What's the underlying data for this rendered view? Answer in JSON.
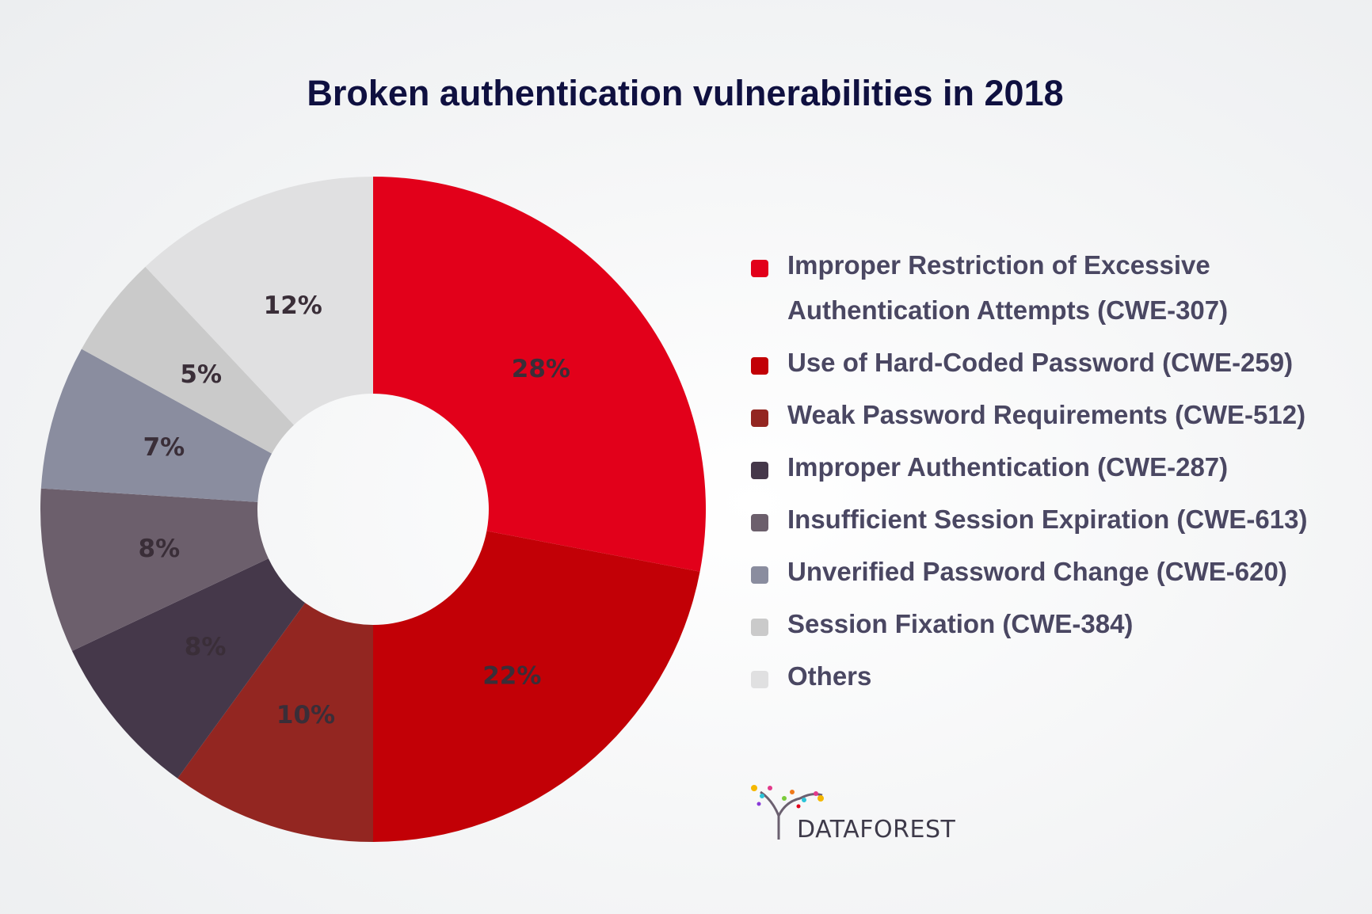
{
  "chart_data": {
    "type": "donut",
    "title": "Broken authentication vulnerabilities in 2018",
    "categories": [
      "Improper Restriction of Excessive Authentication Attempts (CWE-307)",
      "Use of Hard-Coded Password (CWE-259)",
      "Weak Password Requirements (CWE-512)",
      "Improper Authentication (CWE-287)",
      "Insufficient Session Expiration (CWE-613)",
      "Unverified Password Change (CWE-620)",
      "Session Fixation (CWE-384)",
      "Others"
    ],
    "values": [
      28,
      22,
      10,
      8,
      8,
      7,
      5,
      12
    ],
    "value_labels": [
      "28%",
      "22%",
      "10%",
      "8%",
      "8%",
      "7%",
      "5%",
      "12%"
    ],
    "colors": [
      "#e2001a",
      "#c20006",
      "#932621",
      "#45384a",
      "#6c5f6c",
      "#8a8d9f",
      "#cacaca",
      "#e0e0e1"
    ],
    "legend": "right"
  },
  "logo": "DATAFOREST"
}
